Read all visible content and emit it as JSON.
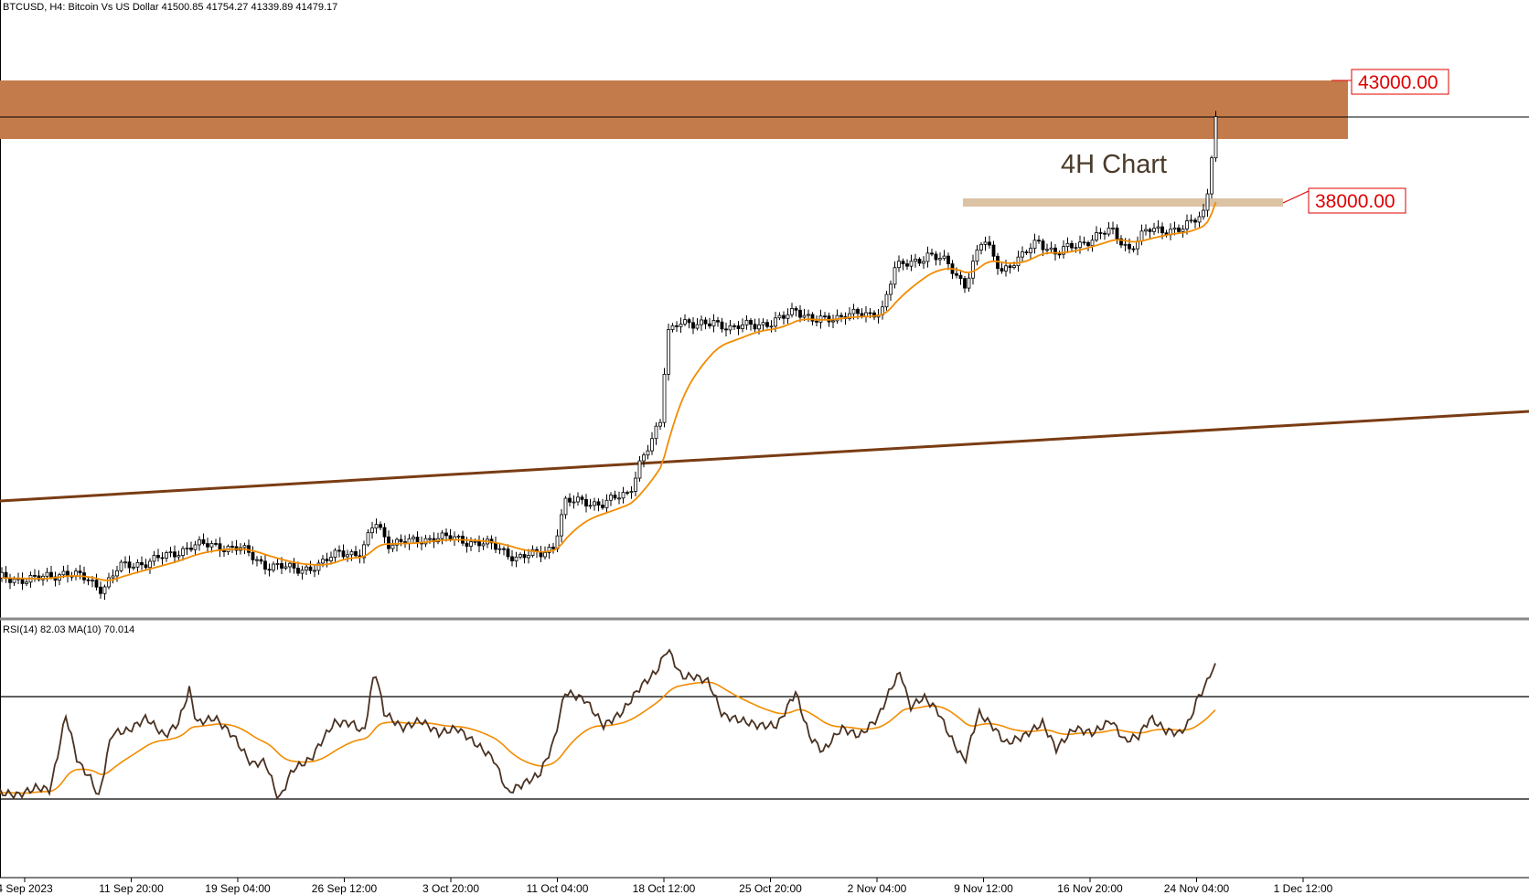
{
  "header": {
    "symbol_line": "BTCUSD, H4:  Bitcoin Vs US Dollar  41500.85 41754.27 41339.89 41479.17"
  },
  "rsi_header": "RSI(14) 82.03 MA(10) 70.014",
  "annotation": "4H Chart",
  "price_labels": {
    "upper": "43000.00",
    "lower": "38000.00"
  },
  "colors": {
    "resistance_zone": "#c47b4b",
    "support_zone": "#dcc3a4",
    "trendline": "#7a3c14",
    "ma_line": "#f28c00",
    "candles": "#000000",
    "rsi_line": "#4a3222",
    "rsi_ma": "#f28c00",
    "label_red": "#e00000"
  },
  "chart_data": {
    "type": "candlestick",
    "timeframe": "H4",
    "x_tick_labels": [
      "4 Sep 2023",
      "11 Sep 20:00",
      "19 Sep 04:00",
      "26 Sep 12:00",
      "3 Oct 20:00",
      "11 Oct 04:00",
      "18 Oct 12:00",
      "25 Oct 20:00",
      "2 Nov 04:00",
      "9 Nov 12:00",
      "16 Nov 20:00",
      "24 Nov 04:00",
      "1 Dec 12:00"
    ],
    "y_range": [
      24500,
      45400
    ],
    "last_ohlc": {
      "open": 41500.85,
      "high": 41754.27,
      "low": 41339.89,
      "close": 41479.17
    },
    "resistance_zone": [
      40950,
      42950
    ],
    "support_zone": [
      37600,
      37900
    ],
    "horizontal_line": 41479.17,
    "trendline": {
      "start_price": 25300,
      "end_price": 31300
    },
    "close_path": [
      {
        "x": 0,
        "y": 25850
      },
      {
        "x": 40,
        "y": 25800
      },
      {
        "x": 70,
        "y": 26050
      },
      {
        "x": 95,
        "y": 25800
      },
      {
        "x": 112,
        "y": 25500
      },
      {
        "x": 130,
        "y": 26200
      },
      {
        "x": 160,
        "y": 26400
      },
      {
        "x": 185,
        "y": 26600
      },
      {
        "x": 208,
        "y": 26950
      },
      {
        "x": 235,
        "y": 26950
      },
      {
        "x": 262,
        "y": 26850
      },
      {
        "x": 290,
        "y": 26300
      },
      {
        "x": 320,
        "y": 26150
      },
      {
        "x": 350,
        "y": 26250
      },
      {
        "x": 372,
        "y": 26800
      },
      {
        "x": 395,
        "y": 26600
      },
      {
        "x": 410,
        "y": 27800
      },
      {
        "x": 425,
        "y": 27050
      },
      {
        "x": 450,
        "y": 27050
      },
      {
        "x": 475,
        "y": 27250
      },
      {
        "x": 500,
        "y": 27150
      },
      {
        "x": 525,
        "y": 27050
      },
      {
        "x": 545,
        "y": 26850
      },
      {
        "x": 565,
        "y": 26550
      },
      {
        "x": 590,
        "y": 26650
      },
      {
        "x": 605,
        "y": 26950
      },
      {
        "x": 618,
        "y": 28400
      },
      {
        "x": 640,
        "y": 28450
      },
      {
        "x": 660,
        "y": 28350
      },
      {
        "x": 688,
        "y": 28750
      },
      {
        "x": 700,
        "y": 29800
      },
      {
        "x": 712,
        "y": 30400
      },
      {
        "x": 722,
        "y": 31100
      },
      {
        "x": 730,
        "y": 34200
      },
      {
        "x": 742,
        "y": 34600
      },
      {
        "x": 760,
        "y": 34300
      },
      {
        "x": 780,
        "y": 34600
      },
      {
        "x": 800,
        "y": 34200
      },
      {
        "x": 820,
        "y": 34500
      },
      {
        "x": 845,
        "y": 34400
      },
      {
        "x": 870,
        "y": 35000
      },
      {
        "x": 890,
        "y": 34500
      },
      {
        "x": 905,
        "y": 34600
      },
      {
        "x": 925,
        "y": 34800
      },
      {
        "x": 950,
        "y": 34700
      },
      {
        "x": 965,
        "y": 35000
      },
      {
        "x": 978,
        "y": 36300
      },
      {
        "x": 995,
        "y": 36500
      },
      {
        "x": 1015,
        "y": 36800
      },
      {
        "x": 1035,
        "y": 36500
      },
      {
        "x": 1055,
        "y": 35800
      },
      {
        "x": 1075,
        "y": 37300
      },
      {
        "x": 1095,
        "y": 36300
      },
      {
        "x": 1115,
        "y": 36600
      },
      {
        "x": 1135,
        "y": 37300
      },
      {
        "x": 1155,
        "y": 36800
      },
      {
        "x": 1175,
        "y": 37100
      },
      {
        "x": 1195,
        "y": 37350
      },
      {
        "x": 1215,
        "y": 37600
      },
      {
        "x": 1235,
        "y": 37000
      },
      {
        "x": 1255,
        "y": 37600
      },
      {
        "x": 1275,
        "y": 37650
      },
      {
        "x": 1295,
        "y": 37650
      },
      {
        "x": 1312,
        "y": 38100
      },
      {
        "x": 1318,
        "y": 38300
      },
      {
        "x": 1324,
        "y": 39900
      },
      {
        "x": 1328,
        "y": 41300
      },
      {
        "x": 1330,
        "y": 41480
      }
    ],
    "rsi": {
      "levels": [
        70,
        30
      ],
      "last_value": 82.03,
      "ma_last_value": 70.014,
      "y_range": [
        0,
        100
      ],
      "values": [
        {
          "x": 0,
          "y": 33
        },
        {
          "x": 20,
          "y": 32
        },
        {
          "x": 40,
          "y": 35
        },
        {
          "x": 55,
          "y": 34
        },
        {
          "x": 72,
          "y": 63
        },
        {
          "x": 85,
          "y": 45
        },
        {
          "x": 100,
          "y": 38
        },
        {
          "x": 108,
          "y": 31
        },
        {
          "x": 122,
          "y": 56
        },
        {
          "x": 140,
          "y": 57
        },
        {
          "x": 160,
          "y": 62
        },
        {
          "x": 180,
          "y": 55
        },
        {
          "x": 195,
          "y": 60
        },
        {
          "x": 207,
          "y": 73
        },
        {
          "x": 215,
          "y": 60
        },
        {
          "x": 235,
          "y": 62
        },
        {
          "x": 255,
          "y": 55
        },
        {
          "x": 275,
          "y": 44
        },
        {
          "x": 290,
          "y": 45
        },
        {
          "x": 305,
          "y": 30
        },
        {
          "x": 320,
          "y": 42
        },
        {
          "x": 340,
          "y": 46
        },
        {
          "x": 350,
          "y": 52
        },
        {
          "x": 365,
          "y": 60
        },
        {
          "x": 385,
          "y": 60
        },
        {
          "x": 398,
          "y": 56
        },
        {
          "x": 410,
          "y": 81
        },
        {
          "x": 420,
          "y": 64
        },
        {
          "x": 440,
          "y": 58
        },
        {
          "x": 460,
          "y": 61
        },
        {
          "x": 480,
          "y": 56
        },
        {
          "x": 500,
          "y": 58
        },
        {
          "x": 520,
          "y": 52
        },
        {
          "x": 540,
          "y": 46
        },
        {
          "x": 555,
          "y": 33
        },
        {
          "x": 570,
          "y": 36
        },
        {
          "x": 590,
          "y": 40
        },
        {
          "x": 605,
          "y": 52
        },
        {
          "x": 618,
          "y": 72
        },
        {
          "x": 640,
          "y": 69
        },
        {
          "x": 660,
          "y": 59
        },
        {
          "x": 680,
          "y": 64
        },
        {
          "x": 700,
          "y": 74
        },
        {
          "x": 718,
          "y": 80
        },
        {
          "x": 730,
          "y": 89
        },
        {
          "x": 745,
          "y": 78
        },
        {
          "x": 760,
          "y": 78
        },
        {
          "x": 775,
          "y": 76
        },
        {
          "x": 790,
          "y": 63
        },
        {
          "x": 810,
          "y": 61
        },
        {
          "x": 830,
          "y": 59
        },
        {
          "x": 850,
          "y": 59
        },
        {
          "x": 870,
          "y": 72
        },
        {
          "x": 885,
          "y": 55
        },
        {
          "x": 900,
          "y": 49
        },
        {
          "x": 920,
          "y": 58
        },
        {
          "x": 940,
          "y": 55
        },
        {
          "x": 960,
          "y": 62
        },
        {
          "x": 975,
          "y": 74
        },
        {
          "x": 985,
          "y": 80
        },
        {
          "x": 995,
          "y": 66
        },
        {
          "x": 1010,
          "y": 70
        },
        {
          "x": 1025,
          "y": 65
        },
        {
          "x": 1040,
          "y": 54
        },
        {
          "x": 1055,
          "y": 45
        },
        {
          "x": 1070,
          "y": 64
        },
        {
          "x": 1085,
          "y": 59
        },
        {
          "x": 1100,
          "y": 52
        },
        {
          "x": 1120,
          "y": 55
        },
        {
          "x": 1140,
          "y": 60
        },
        {
          "x": 1155,
          "y": 50
        },
        {
          "x": 1175,
          "y": 58
        },
        {
          "x": 1195,
          "y": 56
        },
        {
          "x": 1215,
          "y": 61
        },
        {
          "x": 1230,
          "y": 53
        },
        {
          "x": 1245,
          "y": 55
        },
        {
          "x": 1258,
          "y": 62
        },
        {
          "x": 1275,
          "y": 57
        },
        {
          "x": 1290,
          "y": 56
        },
        {
          "x": 1300,
          "y": 60
        },
        {
          "x": 1310,
          "y": 70
        },
        {
          "x": 1318,
          "y": 74
        },
        {
          "x": 1324,
          "y": 80
        },
        {
          "x": 1330,
          "y": 82
        }
      ]
    }
  }
}
